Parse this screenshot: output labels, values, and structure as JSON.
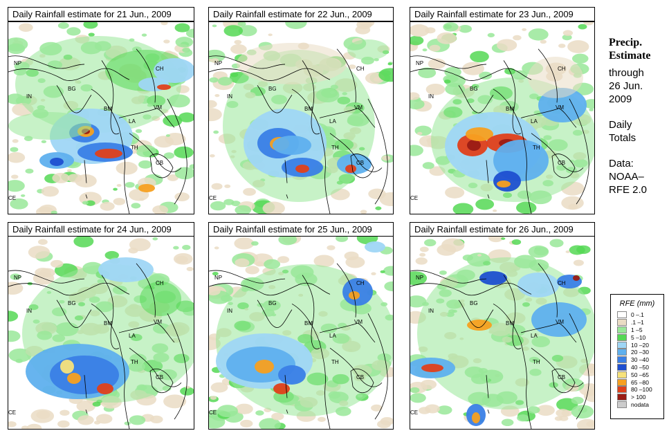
{
  "panels": [
    {
      "title": "Daily Rainfall estimate for  21 Jun., 2009"
    },
    {
      "title": "Daily Rainfall estimate for  22 Jun., 2009"
    },
    {
      "title": "Daily Rainfall estimate for  23 Jun., 2009"
    },
    {
      "title": "Daily Rainfall estimate for  24 Jun., 2009"
    },
    {
      "title": "Daily Rainfall estimate for  25 Jun., 2009"
    },
    {
      "title": "Daily Rainfall estimate for  26 Jun., 2009"
    }
  ],
  "country_labels": {
    "np": "NP",
    "ch": "CH",
    "in": "IN",
    "bg": "BG",
    "bm": "BM",
    "vm": "VM",
    "la": "LA",
    "th": "TH",
    "cb": "CB",
    "ce": "CE"
  },
  "side": {
    "heading_line1": "Precip.",
    "heading_line2": "Estimate",
    "through": "through",
    "end_date_1": "26 Jun.",
    "end_date_2": "2009",
    "totals_1": "Daily",
    "totals_2": "Totals",
    "data_1": "Data:",
    "data_2": "NOAA–",
    "data_3": "RFE 2.0"
  },
  "legend": {
    "title": "RFE (mm)",
    "items": [
      {
        "label": "0 –.1",
        "color": "#ffffff"
      },
      {
        "label": ".1 –1",
        "color": "#eadcc4"
      },
      {
        "label": "1 –5",
        "color": "#99e899"
      },
      {
        "label": "5 –10",
        "color": "#55d855"
      },
      {
        "label": "10 –20",
        "color": "#9fd6f5"
      },
      {
        "label": "20 –30",
        "color": "#5fb0ee"
      },
      {
        "label": "30 –40",
        "color": "#3a7fe6"
      },
      {
        "label": "40 –50",
        "color": "#1e4fd0"
      },
      {
        "label": "50 –65",
        "color": "#f7e27a"
      },
      {
        "label": "65 –80",
        "color": "#f7a020"
      },
      {
        "label": "80 –100",
        "color": "#e0401a"
      },
      {
        "label": "> 100",
        "color": "#9a1c14"
      },
      {
        "label": "nodata",
        "color": "#cccccc"
      }
    ]
  }
}
